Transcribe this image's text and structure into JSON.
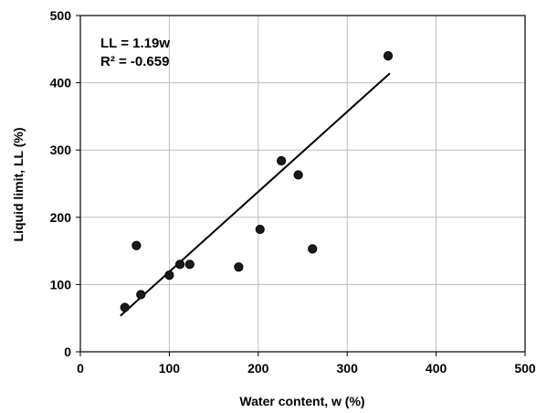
{
  "chart_data": {
    "type": "scatter",
    "title": "",
    "xlabel": "Water content, w (%)",
    "ylabel": "Liquid limit, LL (%)",
    "xlim": [
      0,
      500
    ],
    "ylim": [
      0,
      500
    ],
    "xticks": [
      0,
      100,
      200,
      300,
      400,
      500
    ],
    "yticks": [
      0,
      100,
      200,
      300,
      400,
      500
    ],
    "grid": true,
    "annotations": [
      "LL = 1.19w",
      "R² = -0.659"
    ],
    "series": [
      {
        "points": [
          [
            50,
            66
          ],
          [
            63,
            158
          ],
          [
            68,
            85
          ],
          [
            100,
            114
          ],
          [
            112,
            130
          ],
          [
            123,
            130
          ],
          [
            178,
            126
          ],
          [
            202,
            182
          ],
          [
            226,
            284
          ],
          [
            245,
            263
          ],
          [
            261,
            153
          ],
          [
            346,
            440
          ]
        ]
      }
    ],
    "trendline": {
      "slope": 1.19,
      "intercept": 0,
      "x_range": [
        45,
        348
      ]
    },
    "colors": {
      "marker": "#000000",
      "line": "#000000",
      "grid": "#bdbdbd"
    }
  }
}
